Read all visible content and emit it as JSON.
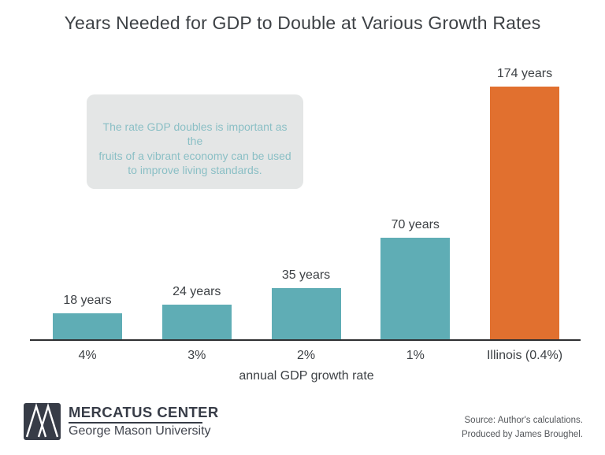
{
  "header": {
    "title": "Years Needed for GDP to Double at Various Growth Rates"
  },
  "annotation": {
    "text": "The rate GDP doubles is important as the\nfruits of a vibrant economy can be used\nto improve living standards."
  },
  "chart_data": {
    "type": "bar",
    "title": "Years Needed for GDP to Double at Various Growth Rates",
    "categories": [
      "4%",
      "3%",
      "2%",
      "1%",
      "Illinois (0.4%)"
    ],
    "values": [
      18,
      24,
      35,
      70,
      174
    ],
    "value_labels": [
      "18 years",
      "24 years",
      "35 years",
      "70 years",
      "174 years"
    ],
    "xlabel": "annual GDP growth rate",
    "ylabel": "",
    "ylim": [
      0,
      180
    ],
    "grid": false,
    "legend": "none",
    "bar_colors": [
      "#5fadb5",
      "#5fadb5",
      "#5fadb5",
      "#5fadb5",
      "#e1702f"
    ],
    "highlighted_category": "Illinois (0.4%)"
  },
  "colors": {
    "teal_bar": "#5fadb5",
    "orange_bar": "#e1702f",
    "annotation_bg": "#e4e6e6",
    "annotation_text": "#8abfc5",
    "axis_line": "#2e2f31",
    "text_dark": "#3d4145",
    "footer_text": "#55585c",
    "logo_dark": "#373c47"
  },
  "footer": {
    "logo_name": "MERCATUS CENTER",
    "logo_subname": "George Mason University",
    "source_line1": "Source: Author's calculations.",
    "source_line2": "Produced by James Broughel."
  }
}
